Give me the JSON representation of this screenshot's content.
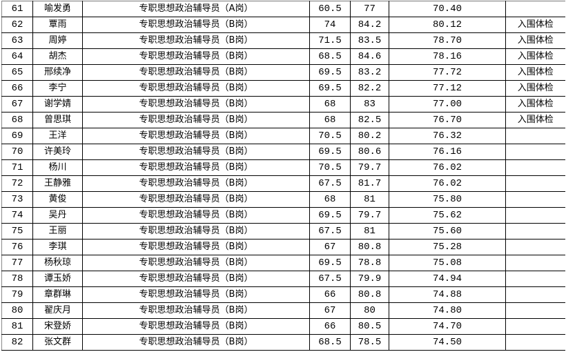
{
  "rows": [
    {
      "no": "61",
      "name": "喻发勇",
      "position": "专职思想政治辅导员（A岗）",
      "written": "60.5",
      "interview": "77",
      "total": "70.40",
      "remark": ""
    },
    {
      "no": "62",
      "name": "覃雨",
      "position": "专职思想政治辅导员（B岗）",
      "written": "74",
      "interview": "84.2",
      "total": "80.12",
      "remark": "入围体检"
    },
    {
      "no": "63",
      "name": "周婷",
      "position": "专职思想政治辅导员（B岗）",
      "written": "71.5",
      "interview": "83.5",
      "total": "78.70",
      "remark": "入围体检"
    },
    {
      "no": "64",
      "name": "胡杰",
      "position": "专职思想政治辅导员（B岗）",
      "written": "68.5",
      "interview": "84.6",
      "total": "78.16",
      "remark": "入围体检"
    },
    {
      "no": "65",
      "name": "邢续净",
      "position": "专职思想政治辅导员（B岗）",
      "written": "69.5",
      "interview": "83.2",
      "total": "77.72",
      "remark": "入围体检"
    },
    {
      "no": "66",
      "name": "李宁",
      "position": "专职思想政治辅导员（B岗）",
      "written": "69.5",
      "interview": "82.2",
      "total": "77.12",
      "remark": "入围体检"
    },
    {
      "no": "67",
      "name": "谢学婧",
      "position": "专职思想政治辅导员（B岗）",
      "written": "68",
      "interview": "83",
      "total": "77.00",
      "remark": "入围体检"
    },
    {
      "no": "68",
      "name": "曾思琪",
      "position": "专职思想政治辅导员（B岗）",
      "written": "68",
      "interview": "82.5",
      "total": "76.70",
      "remark": "入围体检"
    },
    {
      "no": "69",
      "name": "王洋",
      "position": "专职思想政治辅导员（B岗）",
      "written": "70.5",
      "interview": "80.2",
      "total": "76.32",
      "remark": ""
    },
    {
      "no": "70",
      "name": "许美玲",
      "position": "专职思想政治辅导员（B岗）",
      "written": "69.5",
      "interview": "80.6",
      "total": "76.16",
      "remark": ""
    },
    {
      "no": "71",
      "name": "杨川",
      "position": "专职思想政治辅导员（B岗）",
      "written": "70.5",
      "interview": "79.7",
      "total": "76.02",
      "remark": ""
    },
    {
      "no": "72",
      "name": "王静雅",
      "position": "专职思想政治辅导员（B岗）",
      "written": "67.5",
      "interview": "81.7",
      "total": "76.02",
      "remark": ""
    },
    {
      "no": "73",
      "name": "黄俊",
      "position": "专职思想政治辅导员（B岗）",
      "written": "68",
      "interview": "81",
      "total": "75.80",
      "remark": ""
    },
    {
      "no": "74",
      "name": "吴丹",
      "position": "专职思想政治辅导员（B岗）",
      "written": "69.5",
      "interview": "79.7",
      "total": "75.62",
      "remark": ""
    },
    {
      "no": "75",
      "name": "王丽",
      "position": "专职思想政治辅导员（B岗）",
      "written": "67.5",
      "interview": "81",
      "total": "75.60",
      "remark": ""
    },
    {
      "no": "76",
      "name": "李琪",
      "position": "专职思想政治辅导员（B岗）",
      "written": "67",
      "interview": "80.8",
      "total": "75.28",
      "remark": ""
    },
    {
      "no": "77",
      "name": "杨秋琼",
      "position": "专职思想政治辅导员（B岗）",
      "written": "69.5",
      "interview": "78.8",
      "total": "75.08",
      "remark": ""
    },
    {
      "no": "78",
      "name": "谭玉娇",
      "position": "专职思想政治辅导员（B岗）",
      "written": "67.5",
      "interview": "79.9",
      "total": "74.94",
      "remark": ""
    },
    {
      "no": "79",
      "name": "章群琳",
      "position": "专职思想政治辅导员（B岗）",
      "written": "66",
      "interview": "80.8",
      "total": "74.88",
      "remark": ""
    },
    {
      "no": "80",
      "name": "翟庆月",
      "position": "专职思想政治辅导员（B岗）",
      "written": "67",
      "interview": "80",
      "total": "74.80",
      "remark": ""
    },
    {
      "no": "81",
      "name": "宋登娇",
      "position": "专职思想政治辅导员（B岗）",
      "written": "66",
      "interview": "80.5",
      "total": "74.70",
      "remark": ""
    },
    {
      "no": "82",
      "name": "张文群",
      "position": "专职思想政治辅导员（B岗）",
      "written": "68.5",
      "interview": "78.5",
      "total": "74.50",
      "remark": ""
    }
  ]
}
